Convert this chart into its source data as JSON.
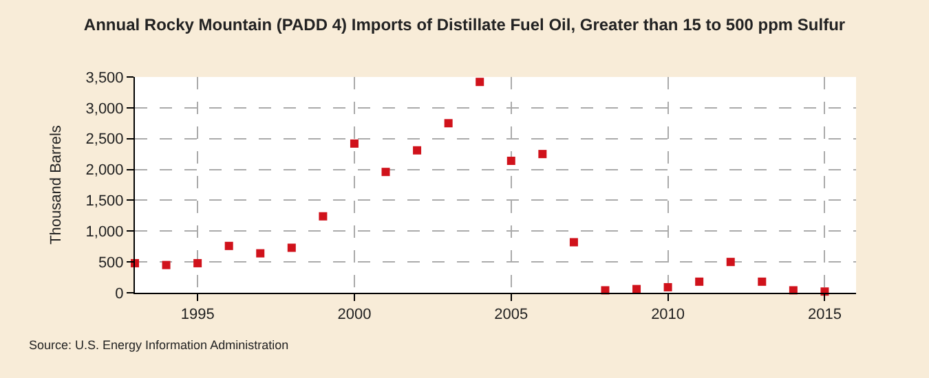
{
  "chart_data": {
    "type": "scatter",
    "title": "Annual Rocky Mountain (PADD 4) Imports of Distillate Fuel Oil, Greater than 15 to 500 ppm Sulfur",
    "ylabel": "Thousand Barrels",
    "x": [
      1993,
      1994,
      1995,
      1996,
      1997,
      1998,
      1999,
      2000,
      2001,
      2002,
      2003,
      2004,
      2005,
      2006,
      2007,
      2008,
      2009,
      2010,
      2011,
      2012,
      2013,
      2014,
      2015
    ],
    "series": [
      {
        "color": "#d0121b",
        "values": [
          480,
          450,
          480,
          760,
          640,
          730,
          1240,
          2420,
          1960,
          2310,
          2750,
          3420,
          2140,
          2250,
          820,
          40,
          60,
          90,
          180,
          500,
          180,
          40,
          20
        ]
      }
    ],
    "xlim": [
      1993,
      2016
    ],
    "xticks": [
      1995,
      2000,
      2005,
      2010,
      2015
    ],
    "ylim": [
      0,
      3500
    ],
    "yticks": [
      {
        "value": 0,
        "label": "0"
      },
      {
        "value": 500,
        "label": "500"
      },
      {
        "value": 1000,
        "label": "1,000"
      },
      {
        "value": 1500,
        "label": "1,500"
      },
      {
        "value": 2000,
        "label": "2,000"
      },
      {
        "value": 2500,
        "label": "2,500"
      },
      {
        "value": 3000,
        "label": "3,000"
      },
      {
        "value": 3500,
        "label": "3,500"
      }
    ],
    "grid": true,
    "marker": "square",
    "legend": false,
    "annotations": [
      "Source: U.S. Energy Information Administration"
    ]
  }
}
